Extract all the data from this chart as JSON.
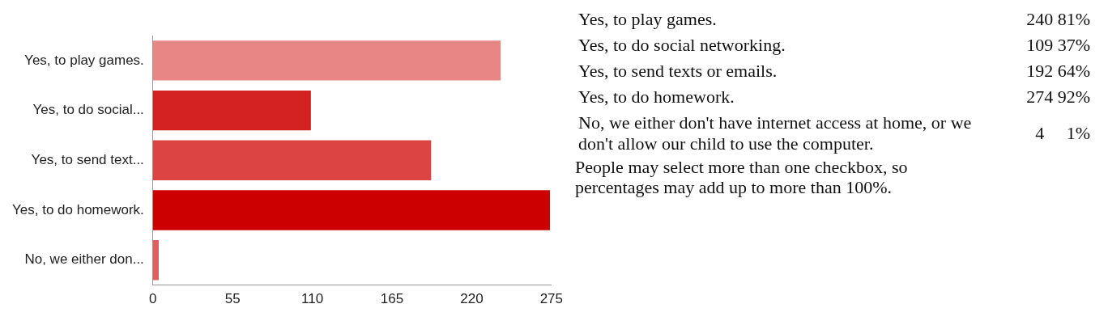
{
  "chart_data": {
    "type": "bar",
    "orientation": "horizontal",
    "categories": [
      "Yes, to play games.",
      "Yes, to do social...",
      "Yes, to send text...",
      "Yes, to do homework.",
      "No, we either don..."
    ],
    "values": [
      240,
      109,
      192,
      274,
      4
    ],
    "colors": [
      "#e88686",
      "#d42222",
      "#dc4444",
      "#cc0000",
      "#e06060"
    ],
    "xlim": [
      0,
      275
    ],
    "xticks": [
      0,
      55,
      110,
      165,
      220,
      275
    ],
    "grid": false,
    "annotations": [
      "Yes, to play games.",
      "240 81%",
      "Yes, to do social networking.",
      "109 37%",
      "Yes, to send texts or emails.",
      "192 64%",
      "Yes, to do homework.",
      "274 92%",
      "No, we either don't have internet access at home, or we don't allow our child to use the computer.",
      "4     1%",
      "People may select more than one checkbox, so percentages may add up to more than 100%."
    ]
  }
}
